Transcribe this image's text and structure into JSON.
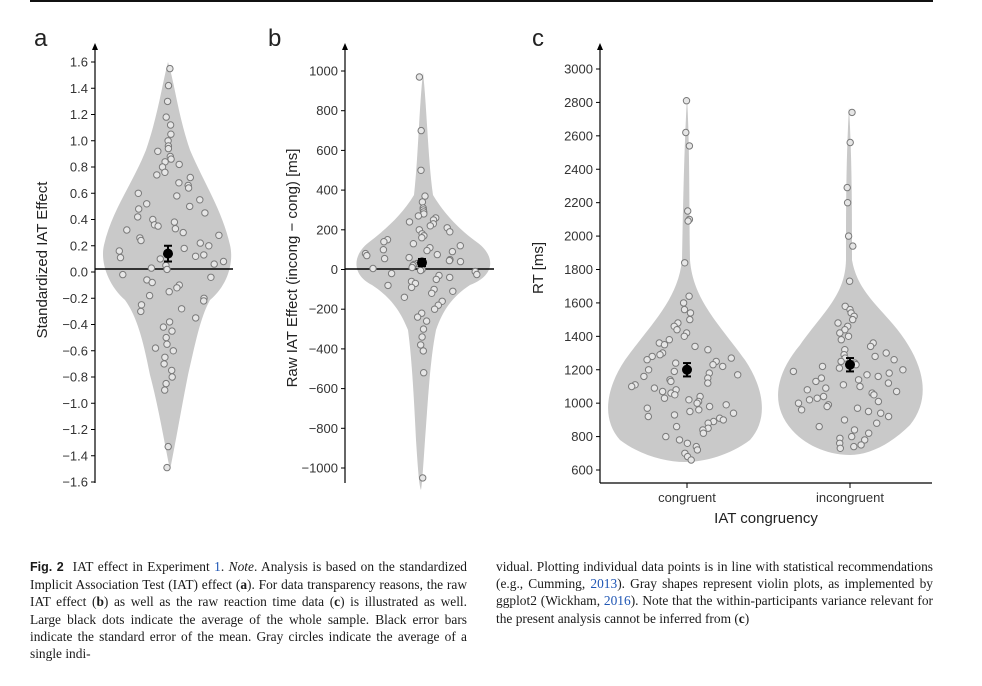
{
  "panels": {
    "a": {
      "letter": "a",
      "ylabel": "Standardized IAT Effect",
      "yticks": [
        "1.6",
        "1.4",
        "1.2",
        "1.0",
        "0.8",
        "0.6",
        "0.4",
        "0.2",
        "0.0",
        "−0.2",
        "−0.4",
        "−0.6",
        "−0.8",
        "−1.0",
        "−1.2",
        "−1.4",
        "−1.6"
      ]
    },
    "b": {
      "letter": "b",
      "ylabel": "Raw IAT Effect (incong − cong) [ms]",
      "yticks": [
        "1000",
        "800",
        "600",
        "400",
        "200",
        "0",
        "−200",
        "−400",
        "−600",
        "−800",
        "−1000"
      ]
    },
    "c": {
      "letter": "c",
      "ylabel": "RT [ms]",
      "xlabel": "IAT congruency",
      "yticks": [
        "3000",
        "2800",
        "2600",
        "2400",
        "2200",
        "2000",
        "1800",
        "1600",
        "1400",
        "1200",
        "1000",
        "800",
        "600"
      ],
      "categories": [
        "congruent",
        "incongruent"
      ]
    }
  },
  "chart_data": [
    {
      "type": "scatter",
      "panel": "a",
      "subtype": "violin with individual points",
      "ylabel": "Standardized IAT Effect",
      "ylim": [
        -1.6,
        1.6
      ],
      "mean": 0.14,
      "se": 0.06,
      "reference_line": 0.0,
      "points": [
        1.55,
        1.42,
        1.3,
        1.18,
        1.12,
        1.05,
        1.0,
        0.96,
        0.94,
        0.92,
        0.88,
        0.86,
        0.84,
        0.82,
        0.8,
        0.76,
        0.74,
        0.72,
        0.68,
        0.66,
        0.64,
        0.6,
        0.58,
        0.55,
        0.52,
        0.5,
        0.48,
        0.45,
        0.42,
        0.4,
        0.38,
        0.36,
        0.35,
        0.33,
        0.32,
        0.3,
        0.28,
        0.26,
        0.24,
        0.22,
        0.2,
        0.18,
        0.16,
        0.15,
        0.13,
        0.12,
        0.11,
        0.1,
        0.08,
        0.06,
        0.05,
        0.03,
        0.02,
        -0.02,
        -0.04,
        -0.06,
        -0.08,
        -0.1,
        -0.12,
        -0.15,
        -0.18,
        -0.2,
        -0.22,
        -0.25,
        -0.28,
        -0.3,
        -0.35,
        -0.38,
        -0.42,
        -0.45,
        -0.5,
        -0.55,
        -0.58,
        -0.6,
        -0.65,
        -0.7,
        -0.75,
        -0.8,
        -0.85,
        -0.9,
        -1.33,
        -1.49
      ]
    },
    {
      "type": "scatter",
      "panel": "b",
      "subtype": "violin with individual points",
      "ylabel": "Raw IAT Effect (incong − cong) [ms]",
      "ylim": [
        -1050,
        1000
      ],
      "mean": 35,
      "se": 18,
      "reference_line": 0,
      "points": [
        970,
        700,
        500,
        370,
        340,
        310,
        300,
        290,
        280,
        270,
        260,
        250,
        240,
        230,
        220,
        210,
        200,
        190,
        180,
        170,
        160,
        150,
        140,
        130,
        120,
        110,
        100,
        95,
        90,
        80,
        75,
        70,
        60,
        55,
        50,
        45,
        40,
        30,
        25,
        20,
        10,
        5,
        0,
        -5,
        -10,
        -20,
        -25,
        -30,
        -40,
        -50,
        -60,
        -70,
        -80,
        -90,
        -100,
        -110,
        -120,
        -140,
        -160,
        -180,
        -200,
        -220,
        -240,
        -260,
        -300,
        -340,
        -380,
        -410,
        -520,
        -1050
      ]
    },
    {
      "type": "scatter",
      "panel": "c",
      "subtype": "violin with individual points",
      "ylabel": "RT [ms]",
      "xlabel": "IAT congruency",
      "categories": [
        "congruent",
        "incongruent"
      ],
      "ylim": [
        600,
        3000
      ],
      "series": [
        {
          "name": "congruent",
          "mean": 1200,
          "se": 40,
          "points": [
            2810,
            2620,
            2540,
            2150,
            2100,
            2090,
            1840,
            1640,
            1600,
            1560,
            1540,
            1500,
            1480,
            1460,
            1440,
            1420,
            1400,
            1380,
            1360,
            1350,
            1340,
            1320,
            1300,
            1290,
            1280,
            1270,
            1260,
            1250,
            1240,
            1230,
            1220,
            1210,
            1200,
            1190,
            1180,
            1170,
            1160,
            1150,
            1140,
            1130,
            1120,
            1110,
            1100,
            1090,
            1080,
            1070,
            1060,
            1050,
            1040,
            1030,
            1020,
            1010,
            1000,
            990,
            980,
            970,
            960,
            950,
            940,
            930,
            920,
            910,
            900,
            890,
            880,
            860,
            850,
            840,
            820,
            800,
            780,
            760,
            740,
            720,
            700,
            680,
            660
          ]
        },
        {
          "name": "incongruent",
          "mean": 1230,
          "se": 40,
          "points": [
            2740,
            2560,
            2290,
            2200,
            2000,
            1940,
            1730,
            1580,
            1560,
            1540,
            1520,
            1500,
            1480,
            1460,
            1440,
            1420,
            1400,
            1380,
            1360,
            1340,
            1320,
            1300,
            1290,
            1280,
            1270,
            1260,
            1250,
            1240,
            1230,
            1220,
            1210,
            1200,
            1190,
            1180,
            1170,
            1160,
            1150,
            1140,
            1130,
            1120,
            1110,
            1100,
            1090,
            1080,
            1070,
            1060,
            1050,
            1040,
            1030,
            1020,
            1010,
            1000,
            990,
            980,
            970,
            960,
            950,
            940,
            920,
            900,
            880,
            860,
            840,
            820,
            800,
            790,
            780,
            760,
            750,
            740,
            730
          ]
        }
      ]
    }
  ],
  "caption": {
    "label": "Fig. 2",
    "left": {
      "s1": "IAT effect in Experiment ",
      "exp_link": "1",
      "s2": ". ",
      "note": "Note",
      "s3": ". Analysis is based on the standardized Implicit Association Test (IAT) effect (",
      "a": "a",
      "s4": "). For data transparency reasons, the raw IAT effect (",
      "b": "b",
      "s5": ") as well as the raw reaction time data (",
      "c": "c",
      "s6": ") is illustrated as well. Large black dots indicate the average of the whole sample. Black error bars indicate the standard error of the mean. Gray circles indicate the average of a single indi-"
    },
    "right": {
      "s1": "vidual. Plotting individual data points is in line with statistical recommendations (e.g., Cumming, ",
      "cite1": "2013",
      "s2": "). Gray shapes represent violin plots, as implemented by ggplot2 (Wickham, ",
      "cite2": "2016",
      "s3": "). Note that the within-participants variance relevant for the present analysis cannot be inferred from (",
      "c": "c",
      "s4": ")"
    }
  }
}
